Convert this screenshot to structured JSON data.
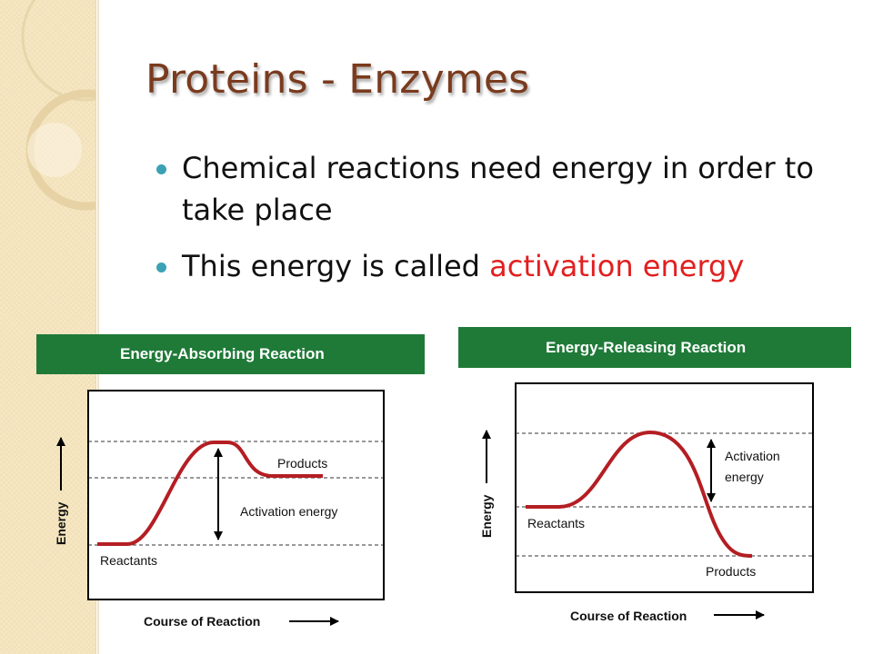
{
  "slide": {
    "title": "Proteins - Enzymes",
    "bullets": [
      {
        "text": " Chemical reactions need energy in order to take place"
      },
      {
        "text": "This energy is called ",
        "highlight": "activation energy"
      }
    ],
    "colors": {
      "title": "#7a3b1e",
      "bullet": "#3ba2b4",
      "highlight": "#e21f1f",
      "panel_header": "#1f7a38",
      "curve": "#b41e23"
    }
  },
  "diagrams": {
    "absorbing": {
      "header": "Energy-Absorbing Reaction",
      "reactants": "Reactants",
      "products": "Products",
      "activation": "Activation energy",
      "ylabel": "Energy",
      "xlabel": "Course of Reaction"
    },
    "releasing": {
      "header": "Energy-Releasing Reaction",
      "reactants": "Reactants",
      "products": "Products",
      "activation_line1": "Activation",
      "activation_line2": "energy",
      "ylabel": "Energy",
      "xlabel": "Course of Reaction"
    }
  }
}
